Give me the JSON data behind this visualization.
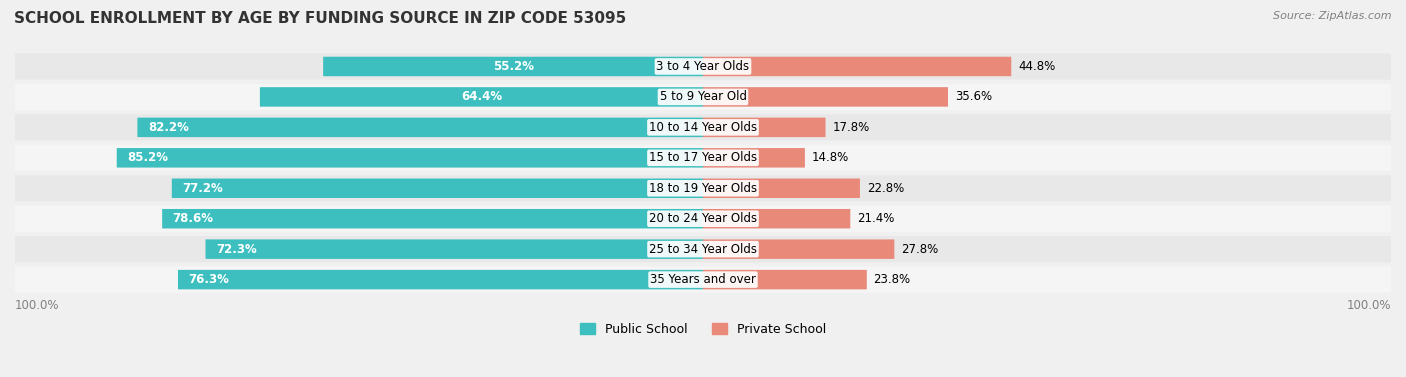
{
  "title": "SCHOOL ENROLLMENT BY AGE BY FUNDING SOURCE IN ZIP CODE 53095",
  "source": "Source: ZipAtlas.com",
  "categories": [
    "3 to 4 Year Olds",
    "5 to 9 Year Old",
    "10 to 14 Year Olds",
    "15 to 17 Year Olds",
    "18 to 19 Year Olds",
    "20 to 24 Year Olds",
    "25 to 34 Year Olds",
    "35 Years and over"
  ],
  "public_pct": [
    55.2,
    64.4,
    82.2,
    85.2,
    77.2,
    78.6,
    72.3,
    76.3
  ],
  "private_pct": [
    44.8,
    35.6,
    17.8,
    14.8,
    22.8,
    21.4,
    27.8,
    23.8
  ],
  "public_color": "#3dbfbf",
  "private_color": "#e8897a",
  "background_color": "#f0f0f0",
  "bar_background": "#ffffff",
  "title_fontsize": 11,
  "label_fontsize": 8.5,
  "legend_fontsize": 9,
  "source_fontsize": 8,
  "bar_height": 0.62,
  "xlim_left": -100,
  "xlim_right": 100
}
